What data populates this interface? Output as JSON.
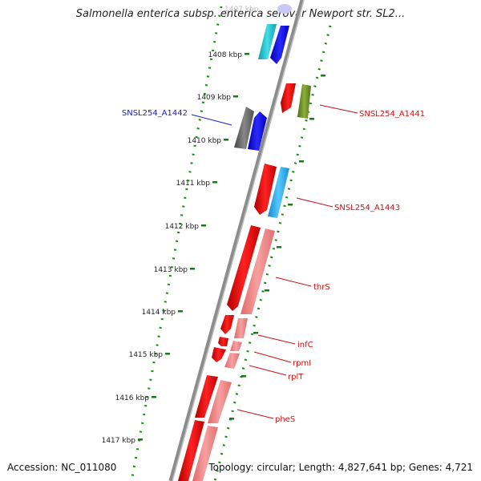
{
  "title": "Salmonella enterica subsp. enterica serovar Newport str. SL2...",
  "ticks": [
    {
      "label": "1408 kbp"
    },
    {
      "label": "1409 kbp"
    },
    {
      "label": "1410 kbp"
    },
    {
      "label": "1411 kbp"
    },
    {
      "label": "1412 kbp"
    },
    {
      "label": "1413 kbp"
    },
    {
      "label": "1414 kbp"
    },
    {
      "label": "1415 kbp"
    },
    {
      "label": "1416 kbp"
    },
    {
      "label": "1417 kbp"
    }
  ],
  "partial_tick_label": "1407 kbp",
  "gene_labels": [
    {
      "text": "SNSL254_A1442",
      "color": "#1a1acc"
    },
    {
      "text": "SNSL254_A1441",
      "color": "#cc1111"
    },
    {
      "text": "SNSL254_A1443",
      "color": "#cc1111"
    },
    {
      "text": "thrS",
      "color": "#cc1111"
    },
    {
      "text": "infC",
      "color": "#cc1111"
    },
    {
      "text": "rpmI",
      "color": "#cc1111"
    },
    {
      "text": "rplT",
      "color": "#cc1111"
    },
    {
      "text": "pheS",
      "color": "#cc1111"
    }
  ],
  "footer": {
    "accession": "Accession: NC_011080",
    "summary": "Topology: circular; Length: 4,827,641 bp; Genes: 4,721"
  },
  "colors": {
    "backbone": "#888888",
    "tick_marks": "#1a7a1a",
    "dotted_guides": "#1a8a1a",
    "gene_red": "#ee1111",
    "gene_pink": "#f08080",
    "gene_blue": "#1111dd",
    "gene_cyan": "#22bbcc",
    "gene_skyblue": "#33aaee",
    "gene_gray": "#666666",
    "gene_olive": "#6b8e23"
  }
}
